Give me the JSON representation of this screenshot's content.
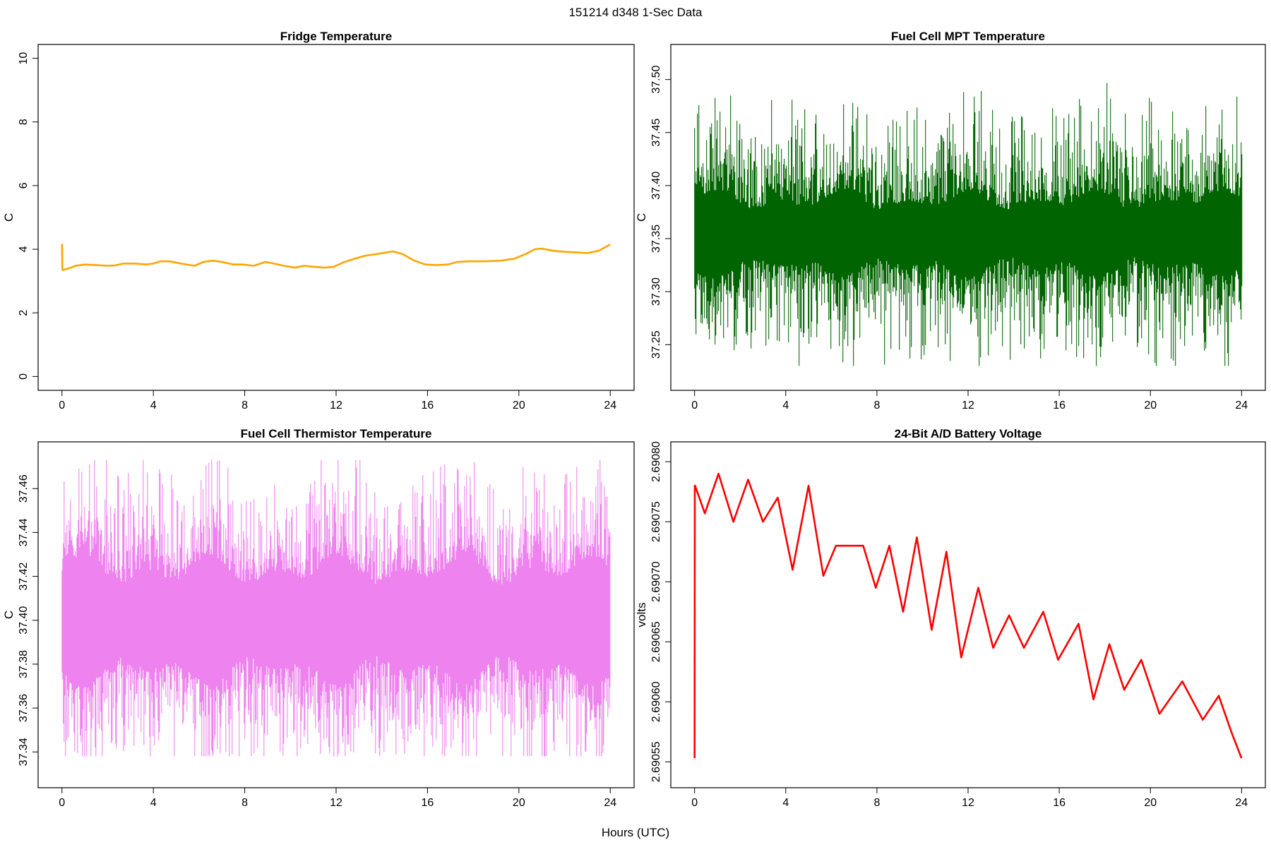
{
  "page_title": "151214   d348   1-Sec Data",
  "x_axis_label": "Hours (UTC)",
  "chart_data": [
    {
      "id": "fridge",
      "type": "line",
      "title": "Fridge Temperature",
      "ylabel": "C",
      "color": "#ffa500",
      "xlim": [
        0,
        24
      ],
      "ylim": [
        0,
        10
      ],
      "xticks": [
        0,
        4,
        8,
        12,
        16,
        20,
        24
      ],
      "yticks": [
        0,
        2,
        4,
        6,
        8,
        10
      ],
      "ytick_labels": [
        "0",
        "2",
        "4",
        "6",
        "8",
        "10"
      ],
      "x": [
        0.0,
        0.02,
        0.05,
        0.3,
        0.6,
        1.0,
        1.5,
        2.0,
        2.3,
        2.7,
        3.2,
        3.7,
        4.0,
        4.3,
        4.7,
        5.2,
        5.8,
        6.2,
        6.6,
        7.0,
        7.5,
        7.9,
        8.4,
        8.9,
        9.2,
        9.7,
        10.2,
        10.6,
        11.0,
        11.5,
        11.9,
        12.3,
        12.8,
        13.3,
        13.8,
        14.2,
        14.5,
        14.9,
        15.4,
        15.9,
        16.4,
        16.9,
        17.3,
        17.8,
        18.5,
        19.2,
        19.8,
        20.3,
        20.7,
        21.0,
        21.5,
        22.0,
        22.5,
        23.0,
        23.5,
        24.0
      ],
      "y": [
        4.15,
        3.35,
        3.35,
        3.4,
        3.48,
        3.52,
        3.5,
        3.48,
        3.49,
        3.55,
        3.55,
        3.52,
        3.55,
        3.62,
        3.62,
        3.55,
        3.48,
        3.6,
        3.64,
        3.6,
        3.52,
        3.52,
        3.48,
        3.6,
        3.56,
        3.48,
        3.42,
        3.48,
        3.45,
        3.42,
        3.45,
        3.58,
        3.7,
        3.8,
        3.85,
        3.9,
        3.93,
        3.85,
        3.65,
        3.52,
        3.5,
        3.52,
        3.6,
        3.62,
        3.62,
        3.64,
        3.7,
        3.85,
        4.0,
        4.02,
        3.95,
        3.92,
        3.9,
        3.88,
        3.95,
        4.15
      ],
      "spike": {
        "x": 0.02,
        "y_low": 3.35,
        "y_high": 4.18
      }
    },
    {
      "id": "mpt",
      "type": "line",
      "title": "Fuel Cell MPT Temperature",
      "ylabel": "C",
      "color": "#006400",
      "xlim": [
        0,
        24
      ],
      "ylim": [
        37.22,
        37.52
      ],
      "xticks": [
        0,
        4,
        8,
        12,
        16,
        20,
        24
      ],
      "yticks": [
        37.25,
        37.3,
        37.35,
        37.4,
        37.45,
        37.5
      ],
      "ytick_labels": [
        "37.25",
        "37.30",
        "37.35",
        "37.40",
        "37.45",
        "37.50"
      ],
      "noise": {
        "center": 37.355,
        "core_amp": 0.03,
        "tail": 0.11,
        "min": 37.23,
        "max": 37.513
      }
    },
    {
      "id": "thermistor",
      "type": "line",
      "title": "Fuel Cell Thermistor Temperature",
      "ylabel": "C",
      "color": "#ee82ee",
      "xlim": [
        0,
        24
      ],
      "ylim": [
        37.33,
        37.475
      ],
      "xticks": [
        0,
        4,
        8,
        12,
        16,
        20,
        24
      ],
      "yticks": [
        37.34,
        37.36,
        37.38,
        37.4,
        37.42,
        37.44,
        37.46
      ],
      "ytick_labels": [
        "37.34",
        "37.36",
        "37.38",
        "37.40",
        "37.42",
        "37.44",
        "37.46"
      ],
      "noise": {
        "center": 37.4,
        "core_amp": 0.022,
        "tail": 0.06,
        "min": 37.338,
        "max": 37.473
      }
    },
    {
      "id": "battery",
      "type": "line",
      "title": "24-Bit A/D Battery Voltage",
      "ylabel": "volts",
      "color": "#ff0000",
      "xlim": [
        0,
        24
      ],
      "ylim": [
        2.69054,
        2.690805
      ],
      "xticks": [
        0,
        4,
        8,
        12,
        16,
        20,
        24
      ],
      "yticks": [
        2.69055,
        2.6906,
        2.69065,
        2.6907,
        2.69075,
        2.6908
      ],
      "ytick_labels": [
        "2.69055",
        "2.69060",
        "2.69065",
        "2.69070",
        "2.69075",
        "2.69080"
      ],
      "x": [
        0.0,
        0.01,
        0.02,
        0.45,
        1.05,
        1.7,
        2.35,
        3.0,
        3.65,
        4.3,
        5.0,
        5.65,
        6.2,
        6.8,
        7.4,
        7.95,
        8.55,
        9.15,
        9.75,
        10.4,
        11.05,
        11.7,
        12.45,
        13.1,
        13.8,
        14.45,
        15.3,
        15.95,
        16.85,
        17.5,
        18.2,
        18.85,
        19.6,
        20.4,
        21.4,
        22.3,
        23.0,
        23.55,
        24.0
      ],
      "y": [
        2.690553,
        2.69078,
        2.69078,
        2.690757,
        2.69079,
        2.69075,
        2.690785,
        2.69075,
        2.69077,
        2.69071,
        2.69078,
        2.690705,
        2.69073,
        2.69073,
        2.69073,
        2.690695,
        2.69073,
        2.690675,
        2.690737,
        2.69066,
        2.690725,
        2.690637,
        2.690695,
        2.690645,
        2.690672,
        2.690645,
        2.690675,
        2.690635,
        2.690665,
        2.690602,
        2.690648,
        2.69061,
        2.690635,
        2.69059,
        2.690617,
        2.690585,
        2.690605,
        2.690575,
        2.690553
      ]
    }
  ]
}
